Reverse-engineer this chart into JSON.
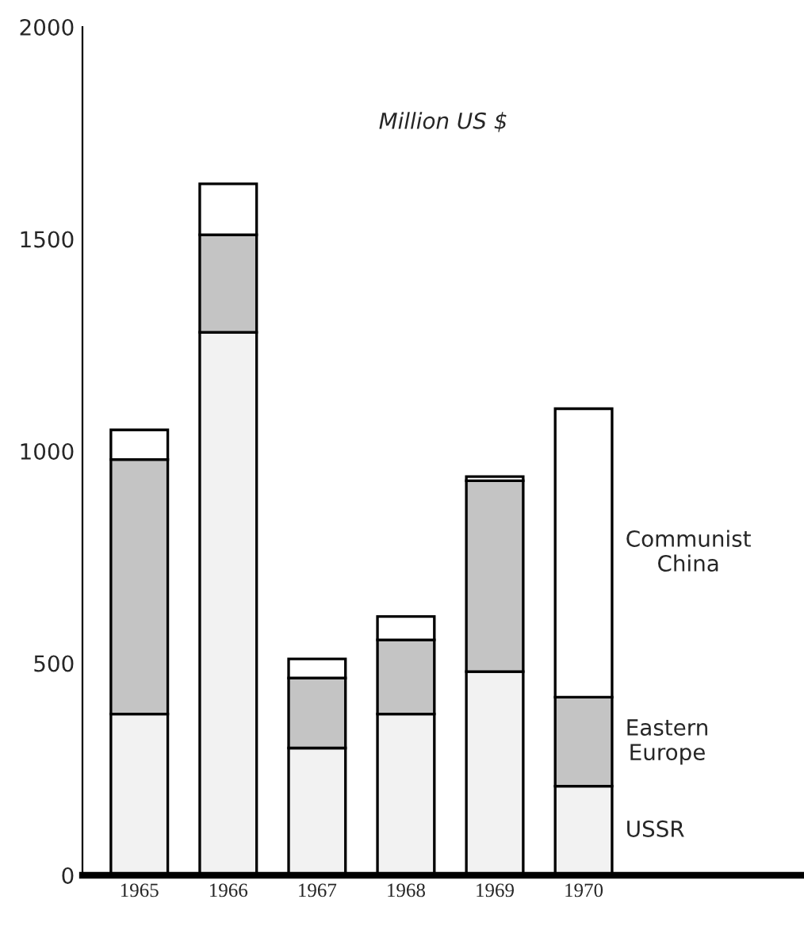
{
  "chart_data": {
    "type": "bar",
    "stacked": true,
    "categories": [
      "1965",
      "1966",
      "1967",
      "1968",
      "1969",
      "1970"
    ],
    "series": [
      {
        "name": "USSR",
        "color": "#f2f2f2",
        "values": [
          380,
          1280,
          300,
          380,
          480,
          210
        ]
      },
      {
        "name": "Eastern Europe",
        "color": "#c4c4c4",
        "values": [
          600,
          230,
          165,
          175,
          450,
          210
        ]
      },
      {
        "name": "Communist China",
        "color": "#ffffff",
        "values": [
          70,
          120,
          45,
          55,
          10,
          680
        ]
      }
    ],
    "ylim": [
      0,
      2000
    ],
    "yticks": [
      0,
      500,
      1000,
      1500,
      2000
    ],
    "grid": false,
    "legend": false,
    "annotations": [
      "Million US $"
    ]
  }
}
